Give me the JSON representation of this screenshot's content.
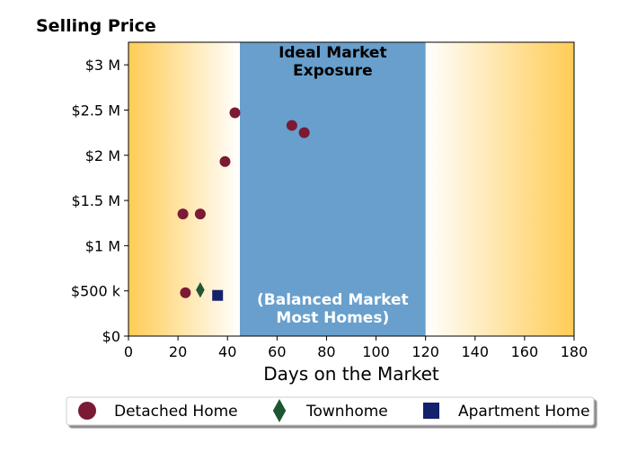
{
  "chart_data": {
    "type": "scatter",
    "title": "Selling Price",
    "xlabel": "Days on the Market",
    "ylabel": "",
    "xlim": [
      0,
      180
    ],
    "ylim": [
      0,
      3250000
    ],
    "x_ticks": [
      0,
      20,
      40,
      60,
      80,
      100,
      120,
      140,
      160,
      180
    ],
    "x_tick_labels": [
      "0",
      "20",
      "40",
      "60",
      "80",
      "100",
      "120",
      "140",
      "160",
      "180"
    ],
    "y_ticks": [
      0,
      500000,
      1000000,
      1500000,
      2000000,
      2500000,
      3000000
    ],
    "y_tick_labels": [
      "$0",
      "$500 k",
      "$1 M",
      "$1.5 M",
      "$2 M",
      "$2.5 M",
      "$3 M"
    ],
    "grid": false,
    "legend_position": "bottom",
    "band": {
      "x_range": [
        45,
        120
      ],
      "color": "#689fcc",
      "top_label": [
        "Ideal Market",
        "Exposure"
      ],
      "bottom_label": [
        "(Balanced Market",
        "Most Homes)"
      ]
    },
    "background_gradient": {
      "edge_color": "#ffcc55",
      "center_color": "#ffffff"
    },
    "series": [
      {
        "name": "Detached Home",
        "marker": "circle",
        "color": "#7a1a35",
        "points": [
          {
            "x": 22,
            "y": 1350000
          },
          {
            "x": 23,
            "y": 480000
          },
          {
            "x": 29,
            "y": 1350000
          },
          {
            "x": 39,
            "y": 1930000
          },
          {
            "x": 43,
            "y": 2470000
          },
          {
            "x": 66,
            "y": 2330000
          },
          {
            "x": 71,
            "y": 2250000
          }
        ]
      },
      {
        "name": "Townhome",
        "marker": "diamond",
        "color": "#1e5631",
        "points": [
          {
            "x": 29,
            "y": 510000
          }
        ]
      },
      {
        "name": "Apartment Home",
        "marker": "square",
        "color": "#14216b",
        "points": [
          {
            "x": 36,
            "y": 450000
          }
        ]
      }
    ]
  }
}
